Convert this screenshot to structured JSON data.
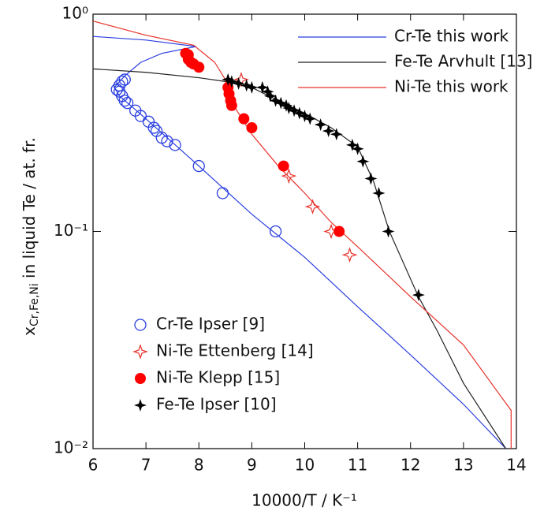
{
  "chart_data": {
    "type": "line",
    "y_label_main": "x",
    "y_label_sub": "Cr,Fe,Ni",
    "y_label_rest": " in liquid Te / at. fr.",
    "x_label": "10000/T / K⁻¹",
    "xlim": [
      6,
      14
    ],
    "xticks": [
      6,
      7,
      8,
      9,
      10,
      11,
      12,
      13,
      14
    ],
    "ylim": [
      0.01,
      1
    ],
    "yticks": [
      {
        "value": 1,
        "label": "10⁰"
      },
      {
        "value": 0.1,
        "label": "10⁻¹"
      },
      {
        "value": 0.01,
        "label": "10⁻²"
      }
    ],
    "y_log": true,
    "line_legend": "upper right",
    "marker_legend": "lower left",
    "series": [
      {
        "name": "Cr-Te this work",
        "color": "#2b3fe0",
        "mode": "line",
        "x": [
          6.0,
          7.0,
          7.95,
          7.3,
          6.9,
          6.6,
          6.4,
          6.5,
          7.0,
          8.0,
          9.0,
          10.0,
          11.0,
          12.0,
          13.0,
          13.8
        ],
        "values": [
          0.79,
          0.76,
          0.71,
          0.66,
          0.6,
          0.52,
          0.46,
          0.42,
          0.33,
          0.2,
          0.12,
          0.076,
          0.045,
          0.027,
          0.016,
          0.01
        ]
      },
      {
        "name": "Fe-Te Arvhult [13]",
        "color": "#222222",
        "mode": "line",
        "x": [
          6.0,
          7.0,
          8.0,
          8.5,
          9.0,
          9.5,
          10.0,
          10.5,
          11.0,
          11.3,
          11.6,
          12.15,
          12.5,
          13.0,
          13.8
        ],
        "values": [
          0.56,
          0.54,
          0.51,
          0.49,
          0.46,
          0.4,
          0.35,
          0.3,
          0.245,
          0.17,
          0.1,
          0.05,
          0.035,
          0.02,
          0.01
        ]
      },
      {
        "name": "Ni-Te this work",
        "color": "#e8322a",
        "mode": "line",
        "x": [
          6.0,
          7.0,
          7.9,
          8.3,
          8.5,
          8.6,
          9.0,
          9.5,
          10.0,
          10.5,
          11.0,
          12.0,
          13.0,
          13.9,
          13.9
        ],
        "values": [
          0.93,
          0.8,
          0.72,
          0.6,
          0.5,
          0.4,
          0.28,
          0.2,
          0.15,
          0.11,
          0.085,
          0.05,
          0.03,
          0.015,
          0.01
        ]
      },
      {
        "name": "Cr-Te Ipser [9]",
        "color": "#2b3fe0",
        "mode": "marker",
        "marker": "circle",
        "x": [
          6.45,
          6.5,
          6.55,
          6.6,
          6.5,
          6.55,
          6.6,
          6.65,
          6.8,
          6.9,
          7.05,
          7.15,
          7.2,
          7.3,
          7.4,
          7.55,
          8.0,
          8.45,
          9.45
        ],
        "values": [
          0.45,
          0.47,
          0.49,
          0.5,
          0.44,
          0.42,
          0.4,
          0.39,
          0.36,
          0.34,
          0.32,
          0.3,
          0.29,
          0.27,
          0.26,
          0.25,
          0.2,
          0.15,
          0.1
        ]
      },
      {
        "name": "Ni-Te Ettenberg [14]",
        "color": "#e8322a",
        "mode": "marker",
        "marker": "star",
        "x": [
          8.8,
          9.7,
          10.15,
          10.5,
          10.85
        ],
        "values": [
          0.5,
          0.18,
          0.13,
          0.1,
          0.078
        ]
      },
      {
        "name": "Ni-Te Klepp [15]",
        "color": "#ff0000",
        "mode": "marker",
        "marker": "dot",
        "x": [
          7.75,
          7.8,
          7.85,
          7.9,
          8.0,
          7.8,
          8.55,
          8.57,
          8.6,
          8.62,
          8.85,
          9.0,
          9.6,
          10.65
        ],
        "values": [
          0.66,
          0.62,
          0.6,
          0.59,
          0.57,
          0.65,
          0.46,
          0.43,
          0.4,
          0.38,
          0.33,
          0.3,
          0.2,
          0.1
        ]
      },
      {
        "name": "Fe-Te Ipser [10]",
        "color": "#000000",
        "mode": "marker",
        "marker": "plus",
        "x": [
          8.55,
          8.62,
          8.75,
          8.9,
          9.0,
          9.2,
          9.3,
          9.35,
          9.45,
          9.55,
          9.65,
          9.7,
          9.8,
          9.9,
          10.0,
          10.1,
          10.3,
          10.45,
          10.6,
          10.9,
          11.0,
          11.1,
          11.25,
          11.4,
          11.58,
          12.15
        ],
        "values": [
          0.5,
          0.49,
          0.48,
          0.47,
          0.46,
          0.46,
          0.44,
          0.42,
          0.4,
          0.39,
          0.38,
          0.37,
          0.36,
          0.35,
          0.34,
          0.33,
          0.31,
          0.29,
          0.28,
          0.25,
          0.24,
          0.21,
          0.175,
          0.15,
          0.1,
          0.051
        ]
      }
    ]
  }
}
